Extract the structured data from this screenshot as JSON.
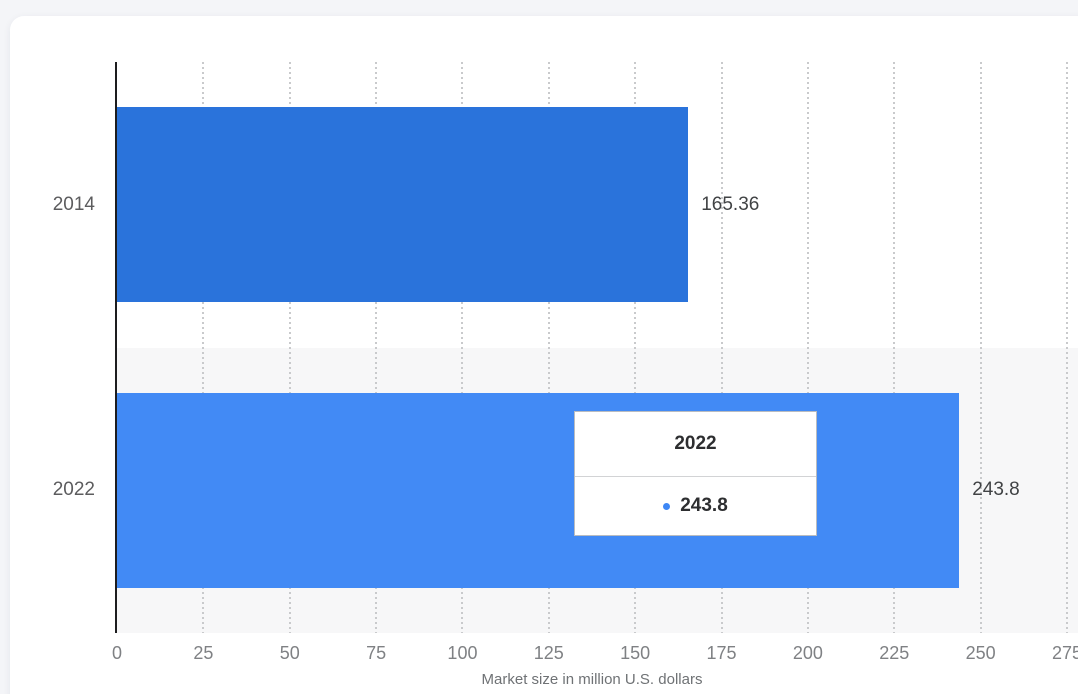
{
  "chart_data": {
    "type": "bar",
    "orientation": "horizontal",
    "title": "",
    "xlabel": "Market size in million U.S. dollars",
    "ylabel": "",
    "categories": [
      "2014",
      "2022"
    ],
    "values": [
      165.36,
      243.8
    ],
    "value_labels": [
      "165.36",
      "243.8"
    ],
    "bar_colors": [
      "#2a73db",
      "#428af5"
    ],
    "xlim": [
      0,
      275
    ],
    "xticks": [
      0,
      25,
      50,
      75,
      100,
      125,
      150,
      175,
      200,
      225,
      250,
      275
    ],
    "grid": "vertical-dotted",
    "hovered_category": "2022",
    "hover_band_color": "#f7f7f8"
  },
  "tooltip": {
    "title": "2022",
    "value": "243.8",
    "marker_color": "#3d87f5"
  },
  "colors": {
    "page_background": "#f4f5f8",
    "card_background": "#ffffff",
    "axis_line": "#1d1d1f",
    "gridline": "#c9cacc",
    "tick_text": "#7f8184",
    "category_text": "#5c5c5e",
    "value_text": "#414345",
    "axis_title_text": "#6f7275"
  }
}
